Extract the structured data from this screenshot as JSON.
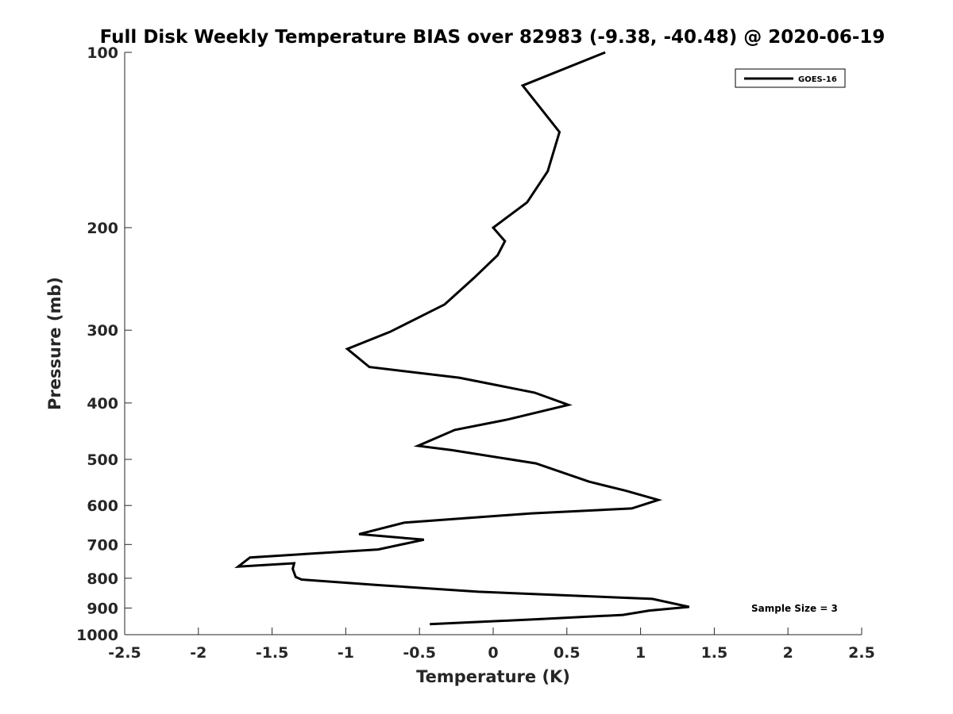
{
  "chart_data": {
    "type": "line",
    "title": "Full Disk Weekly Temperature BIAS over 82983 (-9.38, -40.48) @ 2020-06-19",
    "xlabel": "Temperature (K)",
    "ylabel": "Pressure (mb)",
    "xlim": [
      -2.5,
      2.5
    ],
    "ylim": [
      1000,
      100
    ],
    "y_scale": "log",
    "y_reversed": true,
    "xticks": [
      "-2.5",
      "-2",
      "-1.5",
      "-1",
      "-0.5",
      "0",
      "0.5",
      "1",
      "1.5",
      "2",
      "2.5"
    ],
    "yticks": [
      "100",
      "200",
      "300",
      "400",
      "500",
      "600",
      "700",
      "800",
      "900",
      "1000"
    ],
    "grid": false,
    "legend_position": "top-right",
    "annotation": "Sample Size = 3",
    "series": [
      {
        "name": "GOES-16",
        "color": "#000000",
        "x": [
          0.76,
          0.2,
          0.45,
          0.37,
          0.23,
          0.0,
          0.08,
          0.03,
          -0.13,
          -0.33,
          -0.7,
          -0.99,
          -0.84,
          -0.23,
          0.28,
          0.51,
          0.1,
          -0.26,
          -0.51,
          -0.28,
          0.29,
          0.65,
          0.9,
          1.12,
          0.94,
          0.26,
          -0.6,
          -0.91,
          -0.47,
          -0.78,
          -1.65,
          -1.73,
          -1.35,
          -1.36,
          -1.34,
          -1.3,
          -0.78,
          -0.1,
          1.08,
          1.33,
          1.06,
          0.88,
          0.33,
          -0.43
        ],
        "y": [
          100,
          114,
          137,
          160,
          181,
          200,
          211,
          223,
          244,
          271,
          302,
          323,
          347,
          362,
          384,
          403,
          427,
          445,
          474,
          482,
          508,
          546,
          566,
          587,
          607,
          619,
          642,
          672,
          687,
          714,
          737,
          764,
          754,
          771,
          796,
          804,
          822,
          844,
          868,
          896,
          909,
          925,
          940,
          959
        ]
      }
    ]
  }
}
